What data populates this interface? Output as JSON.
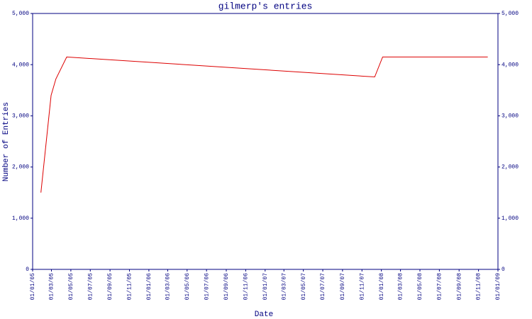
{
  "chart_data": {
    "type": "line",
    "title": "gilmerp's entries",
    "x_label": "Date",
    "y_label": "Number of Entries",
    "x": [
      "27/01/05",
      "28/02/05",
      "15/03/05",
      "18/04/05",
      "11/12/07",
      "05/01/08",
      "30/11/08"
    ],
    "series": [
      {
        "name": "entries",
        "color": "#dd0000",
        "values": [
          1500,
          3400,
          3720,
          4150,
          3760,
          4150,
          4150
        ]
      }
    ],
    "xlim": [
      "01/01/05",
      "01/01/09"
    ],
    "xticks": [
      "01/01/05",
      "01/03/05",
      "01/05/05",
      "01/07/05",
      "01/09/05",
      "01/11/05",
      "01/01/06",
      "01/03/06",
      "01/05/06",
      "01/07/06",
      "01/09/06",
      "01/11/06",
      "01/01/07",
      "01/03/07",
      "01/05/07",
      "01/07/07",
      "01/09/07",
      "01/11/07",
      "01/01/08",
      "01/03/08",
      "01/05/08",
      "01/07/08",
      "01/09/08",
      "01/11/08",
      "01/01/09"
    ],
    "ylim": [
      0,
      5000
    ],
    "yticks": [
      0,
      {
        "value": 1000,
        "label": "1,000"
      },
      {
        "value": 2000,
        "label": "2,000"
      },
      {
        "value": 3000,
        "label": "3,000"
      },
      {
        "value": 4000,
        "label": "4,000"
      },
      {
        "value": 5000,
        "label": "5,000"
      }
    ],
    "y2lim": [
      0,
      5000
    ],
    "y2ticks": [
      0,
      {
        "value": 1000,
        "label": "1,000"
      },
      {
        "value": 2000,
        "label": "2,000"
      },
      {
        "value": 3000,
        "label": "3,000"
      },
      {
        "value": 4000,
        "label": "4,000"
      },
      {
        "value": 5000,
        "label": "5,000"
      }
    ],
    "axis_color": "#000080"
  }
}
